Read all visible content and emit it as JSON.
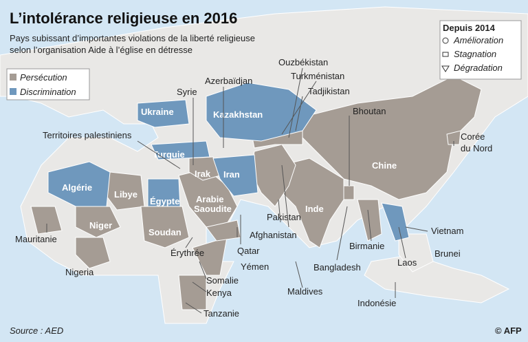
{
  "header": {
    "title": "L’intolérance religieuse en 2016",
    "subtitle": [
      "Pays subissant d’importantes violations de la liberté religieuse",
      "selon l’organisation Aide à l’église en détresse"
    ]
  },
  "legend": {
    "categories": [
      "Persécution",
      "Discrimination"
    ],
    "trend_title": "Depuis 2014",
    "trends": [
      "Amélioration",
      "Stagnation",
      "Dégradation"
    ]
  },
  "countries": [
    "Ukraine",
    "Kazakhstan",
    "Turquie",
    "Iran",
    "Irak",
    "Algérie",
    "Libye",
    "Égypte",
    [
      "Arabie",
      "Saoudite"
    ],
    "Niger",
    "Soudan",
    "Chine",
    "Inde",
    "Syrie",
    "Azerbaïdjan",
    "Ouzbékistan",
    "Turkménistan",
    "Tadjikistan",
    "Bhoutan",
    "Territoires palestiniens",
    [
      "Corée",
      "du Nord"
    ],
    "Mauritanie",
    "Nigeria",
    "Érythrée",
    "Qatar",
    "Yémen",
    "Afghanistan",
    "Pakistan",
    "Bangladesh",
    "Birmanie",
    "Vietnam",
    "Laos",
    "Brunei",
    "Somalie",
    "Kenya",
    "Maldives",
    "Indonésie",
    "Tanzanie"
  ],
  "source": "Source : AED",
  "credit": "© AFP"
}
